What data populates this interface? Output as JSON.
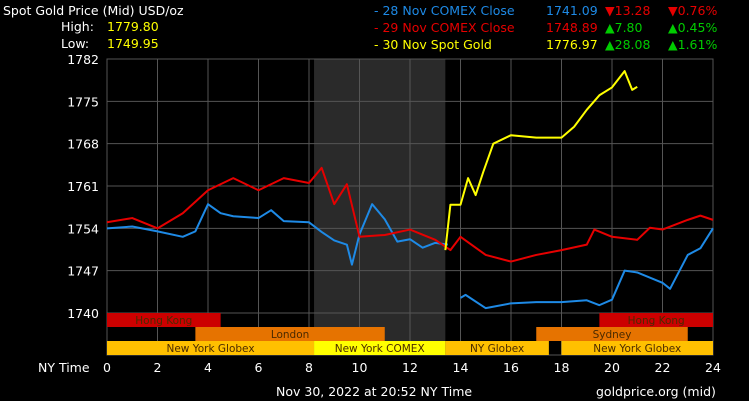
{
  "header": {
    "title": "Spot Gold Price (Mid) USD/oz",
    "high_label": "High:",
    "high_value": "1779.80",
    "low_label": "Low:",
    "low_value": "1749.95"
  },
  "legend": [
    {
      "label": "- 28 Nov COMEX Close",
      "price": "1741.09",
      "change": "13.28",
      "change_pct": "0.76%",
      "direction": "down",
      "color": "#1e8ae6"
    },
    {
      "label": "- 29 Nov COMEX Close",
      "price": "1748.89",
      "change": "7.80",
      "change_pct": "0.45%",
      "direction": "up",
      "color": "#e60000"
    },
    {
      "label": "- 30 Nov Spot Gold",
      "price": "1776.97",
      "change": "28.08",
      "change_pct": "1.61%",
      "direction": "up",
      "color": "#ffff00"
    }
  ],
  "footer": {
    "timestamp": "Nov 30, 2022 at 20:52 NY Time",
    "source": "goldprice.org (mid)"
  },
  "colors": {
    "up": "#00cc00",
    "down": "#e60000",
    "grid": "#555555",
    "text": "#ffffff"
  },
  "chart_data": {
    "type": "line",
    "title": "Spot Gold Price (Mid) USD/oz",
    "xlabel": "NY Time",
    "ylabel": "",
    "xlim": [
      0,
      24
    ],
    "ylim": [
      1740,
      1782
    ],
    "xticks": [
      0,
      2,
      4,
      6,
      8,
      10,
      12,
      14,
      16,
      18,
      20,
      22,
      24
    ],
    "yticks": [
      1740,
      1747,
      1754,
      1761,
      1768,
      1775,
      1782
    ],
    "grid": true,
    "shaded_region": [
      8.2,
      13.4
    ],
    "sessions": [
      {
        "name": "Hong Kong",
        "start": 0,
        "end": 4.5,
        "row": 0,
        "color": "#cc0000"
      },
      {
        "name": "Hong Kong",
        "start": 19.5,
        "end": 24,
        "row": 0,
        "color": "#cc0000"
      },
      {
        "name": "London",
        "start": 3.5,
        "end": 11,
        "row": 1,
        "color": "#e67300"
      },
      {
        "name": "Sydney",
        "start": 17,
        "end": 23,
        "row": 1,
        "color": "#e67300"
      },
      {
        "name": "New York Globex",
        "start": 0,
        "end": 8.2,
        "row": 2,
        "color": "#ffc000"
      },
      {
        "name": "New York COMEX",
        "start": 8.2,
        "end": 13.4,
        "row": 2,
        "color": "#ffff00"
      },
      {
        "name": "NY Globex",
        "start": 13.4,
        "end": 17.5,
        "row": 2,
        "color": "#ffc000"
      },
      {
        "name": "New York Globex",
        "start": 18,
        "end": 24,
        "row": 2,
        "color": "#ffc000"
      }
    ],
    "series": [
      {
        "name": "28 Nov COMEX Close",
        "color": "#1e8ae6",
        "segments": [
          [
            [
              0,
              1754
            ],
            [
              1,
              1754.3
            ],
            [
              2,
              1753.5
            ],
            [
              3,
              1752.6
            ],
            [
              3.5,
              1753.5
            ],
            [
              4,
              1758
            ],
            [
              4.5,
              1756.5
            ],
            [
              5,
              1756
            ],
            [
              6,
              1755.7
            ],
            [
              6.5,
              1757
            ],
            [
              7,
              1755.2
            ],
            [
              8,
              1755
            ],
            [
              8.5,
              1753.4
            ],
            [
              9,
              1752
            ],
            [
              9.5,
              1751.3
            ],
            [
              9.7,
              1748
            ],
            [
              10,
              1753
            ],
            [
              10.5,
              1758
            ],
            [
              11,
              1755.5
            ],
            [
              11.5,
              1751.8
            ],
            [
              12,
              1752.2
            ],
            [
              12.5,
              1750.8
            ],
            [
              13,
              1751.6
            ],
            [
              13.5,
              1751.3
            ]
          ],
          [
            [
              14,
              1742.5
            ],
            [
              14.2,
              1743
            ],
            [
              15,
              1740.8
            ],
            [
              16,
              1741.6
            ],
            [
              17,
              1741.8
            ],
            [
              18,
              1741.8
            ],
            [
              19,
              1742.1
            ],
            [
              19.5,
              1741.3
            ],
            [
              20,
              1742.2
            ],
            [
              20.5,
              1747
            ],
            [
              21,
              1746.7
            ],
            [
              22,
              1745
            ],
            [
              22.3,
              1744
            ],
            [
              23,
              1749.6
            ],
            [
              23.5,
              1750.7
            ],
            [
              24,
              1754
            ]
          ]
        ]
      },
      {
        "name": "29 Nov COMEX Close",
        "color": "#e60000",
        "segments": [
          [
            [
              0,
              1755
            ],
            [
              1,
              1755.7
            ],
            [
              2,
              1754
            ],
            [
              3,
              1756.5
            ],
            [
              4,
              1760.3
            ],
            [
              5,
              1762.3
            ],
            [
              6,
              1760.3
            ],
            [
              7,
              1762.3
            ],
            [
              8,
              1761.5
            ],
            [
              8.5,
              1764
            ],
            [
              9,
              1758
            ],
            [
              9.5,
              1761.3
            ],
            [
              10,
              1752.6
            ],
            [
              11,
              1752.9
            ],
            [
              12,
              1753.8
            ],
            [
              13,
              1752.1
            ],
            [
              13.6,
              1750.4
            ],
            [
              14,
              1752.6
            ],
            [
              15,
              1749.6
            ],
            [
              16,
              1748.5
            ],
            [
              17,
              1749.6
            ],
            [
              18,
              1750.4
            ],
            [
              19,
              1751.3
            ],
            [
              19.3,
              1753.8
            ],
            [
              20,
              1752.6
            ],
            [
              21,
              1752.1
            ],
            [
              21.5,
              1754.1
            ],
            [
              22,
              1753.8
            ],
            [
              23,
              1755.4
            ],
            [
              23.5,
              1756.1
            ],
            [
              24,
              1755.4
            ]
          ]
        ]
      },
      {
        "name": "30 Nov Spot Gold",
        "color": "#ffff00",
        "segments": [
          [
            [
              13.4,
              1750.4
            ],
            [
              13.6,
              1757.9
            ],
            [
              14,
              1757.9
            ],
            [
              14.3,
              1762.3
            ],
            [
              14.6,
              1759.5
            ],
            [
              14.9,
              1763.3
            ],
            [
              15.3,
              1768
            ],
            [
              16,
              1769.4
            ],
            [
              17,
              1769
            ],
            [
              18,
              1769
            ],
            [
              18.5,
              1770.8
            ],
            [
              19,
              1773.6
            ],
            [
              19.5,
              1776
            ],
            [
              20,
              1777.3
            ],
            [
              20.5,
              1780
            ],
            [
              20.8,
              1776.9
            ],
            [
              21,
              1777.4
            ]
          ]
        ]
      }
    ]
  }
}
